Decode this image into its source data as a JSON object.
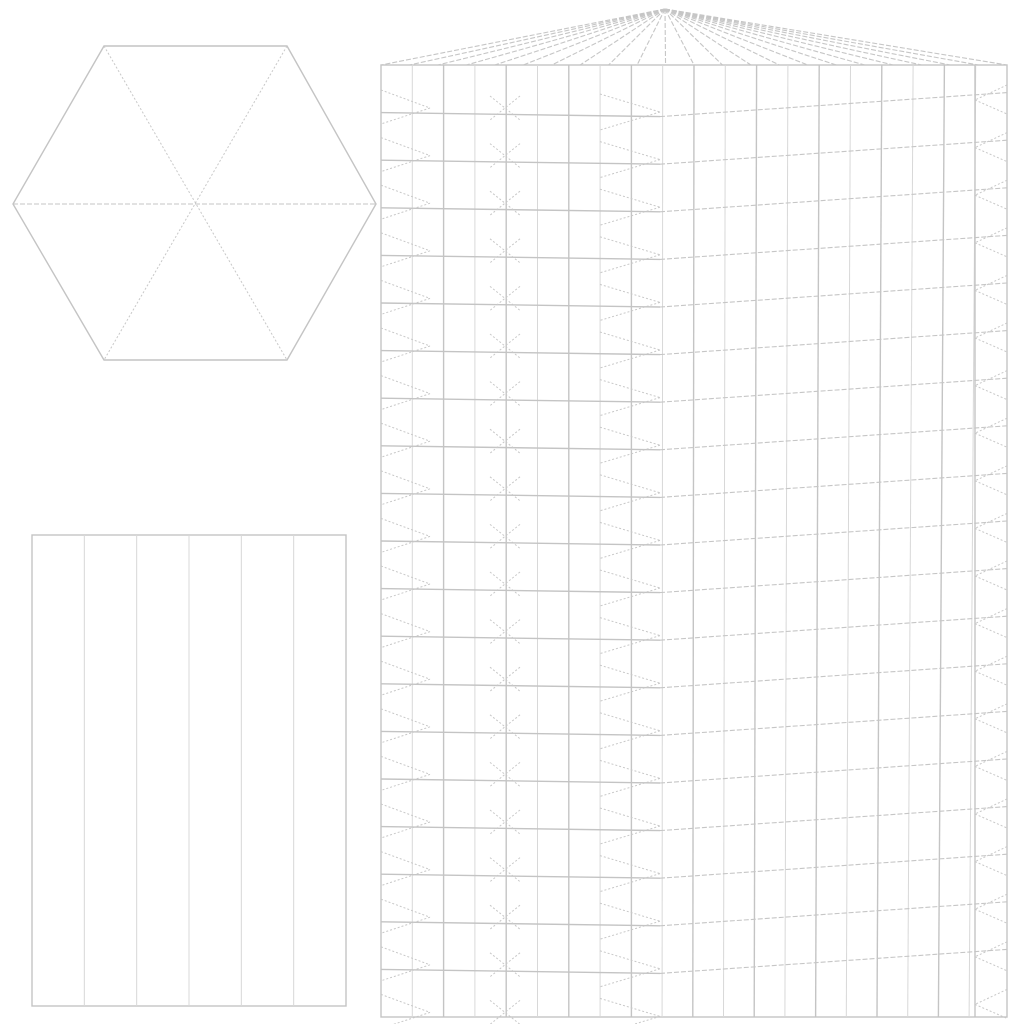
{
  "figure": {
    "background": "#ffffff",
    "line_color": "#c4c4c4",
    "panels": [
      "hexagon",
      "rectangle-strips",
      "crease-pattern"
    ]
  },
  "hexagon": {
    "segments": 6
  },
  "strips": {
    "count": 6
  },
  "crease_pattern": {
    "rows": 20,
    "columns": 20,
    "radiating_lines": 22
  }
}
